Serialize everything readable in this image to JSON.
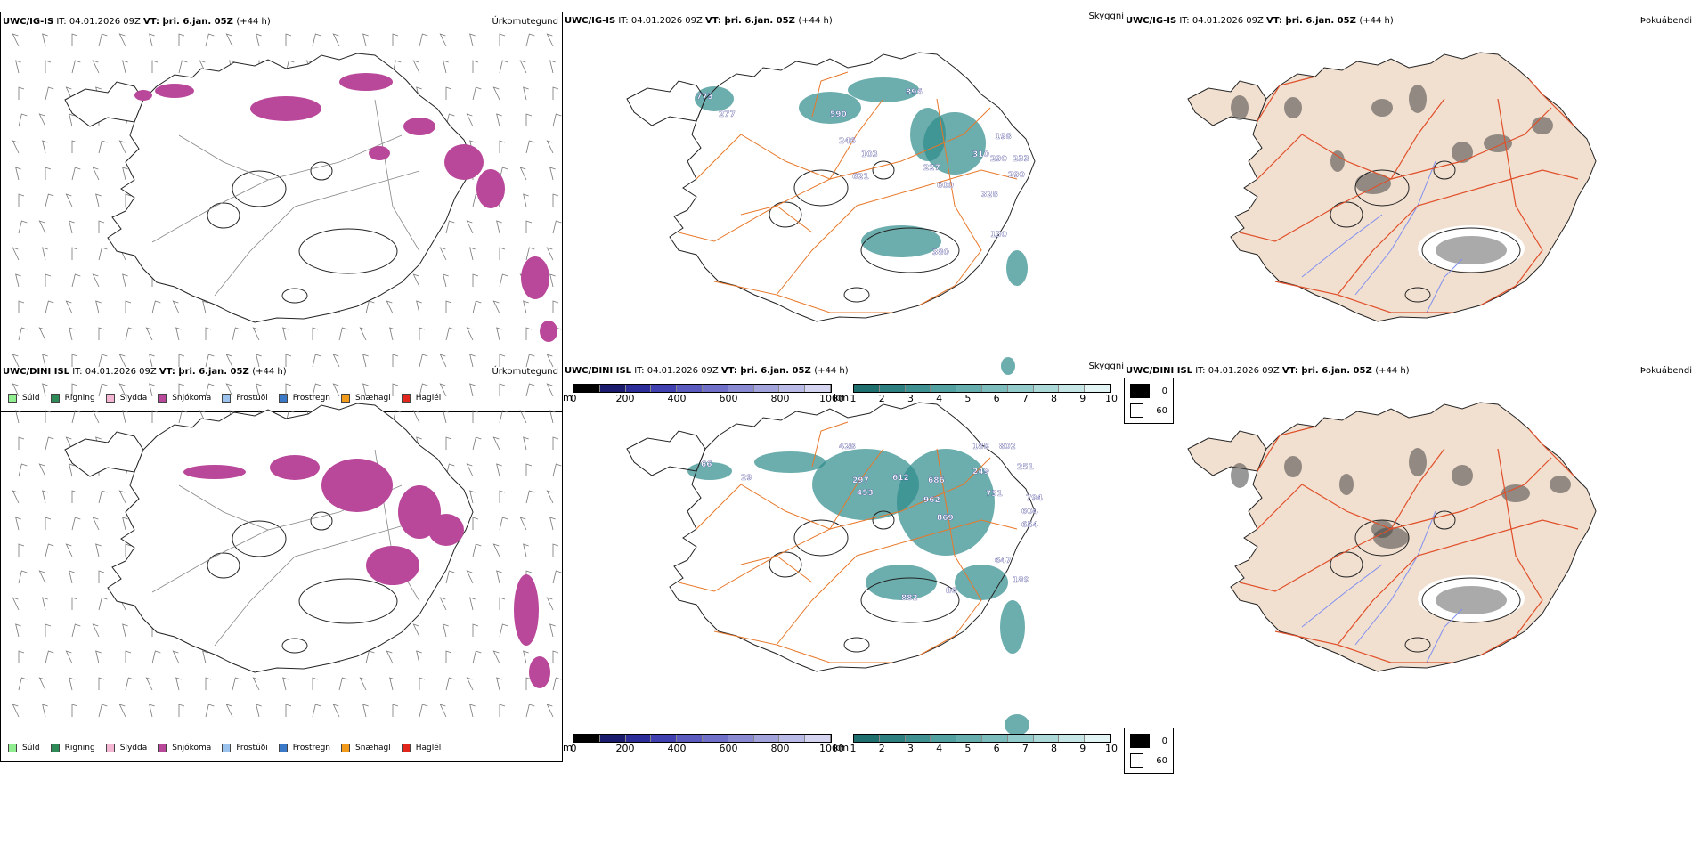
{
  "rows": [
    {
      "precip_panel": {
        "model": "UWC/IG-IS",
        "it_label": "IT: 04.01.2026 09Z",
        "vt_label": "VT: þri. 6.jan. 05Z",
        "lead": "(+44 h)",
        "title": "Úrkomutegund"
      },
      "cloud_panel": {
        "model": "UWC/IG-IS",
        "it_label": "IT: 04.01.2026 09Z",
        "vt_label": "VT: þri. 6.jan. 05Z",
        "lead": "(+44 h)",
        "title": "Skyggni",
        "height_labels": [
          "773",
          "277",
          "590",
          "246",
          "103",
          "621",
          "896",
          "310",
          "290",
          "198",
          "233",
          "290",
          "328",
          "227",
          "600",
          "130",
          "380"
        ]
      },
      "fog_panel": {
        "model": "UWC/IG-IS",
        "it_label": "IT: 04.01.2026 09Z",
        "vt_label": "VT: þri. 6.jan. 05Z",
        "lead": "(+44 h)",
        "title": "Þokuábendi"
      }
    },
    {
      "precip_panel": {
        "model": "UWC/DINI ISL",
        "it_label": "IT: 04.01.2026 09Z",
        "vt_label": "VT: þri. 6.jan. 05Z",
        "lead": "(+44 h)",
        "title": "Úrkomutegund"
      },
      "cloud_panel": {
        "model": "UWC/DINI ISL",
        "it_label": "IT: 04.01.2026 09Z",
        "vt_label": "VT: þri. 6.jan. 05Z",
        "lead": "(+44 h)",
        "title": "Skyggni",
        "height_labels": [
          "66",
          "29",
          "428",
          "297",
          "453",
          "612",
          "686",
          "188",
          "802",
          "251",
          "249",
          "731",
          "962",
          "869",
          "794",
          "604",
          "654",
          "647",
          "189",
          "882",
          "86"
        ]
      },
      "fog_panel": {
        "model": "UWC/DINI ISL",
        "it_label": "IT: 04.01.2026 09Z",
        "vt_label": "VT: þri. 6.jan. 05Z",
        "lead": "(+44 h)",
        "title": "Þokuábendi"
      }
    }
  ],
  "precip_legend": [
    {
      "label": "Súld",
      "color": "#90ee90"
    },
    {
      "label": "Rigning",
      "color": "#2e8b57"
    },
    {
      "label": "Slydda",
      "color": "#f4b6d2"
    },
    {
      "label": "Snjókoma",
      "color": "#b9479a"
    },
    {
      "label": "Frostúði",
      "color": "#9cc2ee"
    },
    {
      "label": "Frostregn",
      "color": "#3a78c8"
    },
    {
      "label": "Snæhagl",
      "color": "#f29b1a"
    },
    {
      "label": "Haglél",
      "color": "#e2261b"
    }
  ],
  "cloudbase_scale": {
    "unit": "m",
    "ticks": [
      "0",
      "200",
      "400",
      "600",
      "800",
      "1000"
    ],
    "colors": [
      "#000000",
      "#1b1b6e",
      "#2d2d9a",
      "#4040b0",
      "#5b5bbf",
      "#7070c8",
      "#8a8ad2",
      "#a3a3dc",
      "#babae6",
      "#d4d4f0"
    ]
  },
  "visibility_scale": {
    "unit": "km",
    "ticks": [
      "1",
      "2",
      "3",
      "4",
      "5",
      "6",
      "7",
      "8",
      "9",
      "10"
    ],
    "colors": [
      "#1f6f6f",
      "#2e8080",
      "#3f9090",
      "#52a0a0",
      "#66aeae",
      "#7cbcbc",
      "#93caca",
      "#acd8d8",
      "#c6e6e6",
      "#e2f3f3"
    ]
  },
  "cloud_cover_legend": [
    {
      "label": "0",
      "color": "#000000"
    },
    {
      "label": "60",
      "color": "#ffffff"
    }
  ],
  "colors": {
    "snow": "#b9479a",
    "roads": "#e8782a",
    "fog_land": "#f1dfcf",
    "fog_roads": "#e0502a",
    "rivers": "#7f8ff0",
    "teal": "#2d8a8a"
  }
}
